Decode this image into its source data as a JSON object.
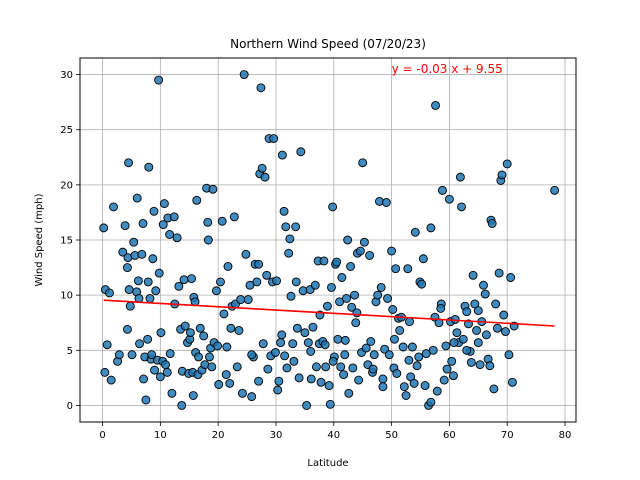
{
  "chart_data": {
    "type": "scatter",
    "title": "Northern Wind Speed (07/20/23)",
    "xlabel": "Latitude",
    "ylabel": "Wind Speed (mph)",
    "xlim": [
      -3.9,
      81.9
    ],
    "ylim": [
      -1.5,
      31.5
    ],
    "xticks": [
      0,
      10,
      20,
      30,
      40,
      50,
      60,
      70,
      80
    ],
    "yticks": [
      0,
      5,
      10,
      15,
      20,
      25,
      30
    ],
    "grid": true,
    "point_color": "#1f77b4",
    "point_edge_color": "#000000",
    "regression": {
      "equation": "y = -0.03 x + 9.55",
      "slope": -0.03,
      "intercept": 9.55,
      "x_range": [
        0.2,
        78.2
      ],
      "color": "#ff0000",
      "label_position": [
        50,
        30.5
      ]
    },
    "points": [
      [
        0.2,
        16.1
      ],
      [
        0.4,
        3.0
      ],
      [
        0.5,
        10.5
      ],
      [
        0.8,
        5.5
      ],
      [
        1.2,
        10.2
      ],
      [
        1.5,
        2.3
      ],
      [
        1.9,
        18.0
      ],
      [
        2.6,
        4.0
      ],
      [
        2.9,
        4.6
      ],
      [
        3.5,
        13.9
      ],
      [
        3.9,
        16.3
      ],
      [
        4.3,
        6.9
      ],
      [
        4.3,
        12.5
      ],
      [
        4.4,
        13.4
      ],
      [
        4.5,
        22.0
      ],
      [
        4.6,
        10.5
      ],
      [
        4.8,
        9.0
      ],
      [
        5.1,
        4.6
      ],
      [
        5.4,
        14.8
      ],
      [
        5.6,
        13.6
      ],
      [
        5.9,
        10.3
      ],
      [
        6.0,
        18.8
      ],
      [
        6.2,
        11.3
      ],
      [
        6.3,
        9.7
      ],
      [
        6.4,
        5.6
      ],
      [
        6.8,
        13.7
      ],
      [
        7.0,
        16.5
      ],
      [
        7.1,
        2.4
      ],
      [
        7.3,
        4.4
      ],
      [
        7.5,
        0.5
      ],
      [
        7.8,
        6.0
      ],
      [
        7.9,
        11.2
      ],
      [
        8.0,
        21.6
      ],
      [
        8.2,
        9.7
      ],
      [
        8.4,
        4.2
      ],
      [
        8.5,
        4.6
      ],
      [
        8.7,
        13.3
      ],
      [
        8.9,
        17.6
      ],
      [
        9.0,
        3.2
      ],
      [
        9.2,
        10.4
      ],
      [
        9.5,
        4.1
      ],
      [
        9.7,
        29.5
      ],
      [
        9.8,
        12.0
      ],
      [
        10.0,
        2.6
      ],
      [
        10.1,
        6.6
      ],
      [
        10.4,
        4.0
      ],
      [
        10.5,
        16.4
      ],
      [
        10.7,
        18.3
      ],
      [
        10.9,
        3.7
      ],
      [
        11.2,
        3.0
      ],
      [
        11.3,
        17.0
      ],
      [
        11.6,
        15.5
      ],
      [
        11.7,
        4.7
      ],
      [
        12.0,
        1.1
      ],
      [
        12.4,
        17.1
      ],
      [
        12.9,
        15.2
      ],
      [
        13.2,
        10.8
      ],
      [
        13.5,
        6.9
      ],
      [
        13.7,
        0.0
      ],
      [
        13.8,
        3.1
      ],
      [
        14.1,
        11.4
      ],
      [
        14.3,
        7.2
      ],
      [
        14.7,
        5.7
      ],
      [
        14.9,
        2.9
      ],
      [
        15.1,
        6.0
      ],
      [
        15.2,
        6.6
      ],
      [
        15.4,
        11.5
      ],
      [
        15.6,
        3.0
      ],
      [
        15.7,
        0.9
      ],
      [
        15.8,
        9.8
      ],
      [
        16.1,
        4.8
      ],
      [
        16.3,
        18.6
      ],
      [
        16.5,
        2.8
      ],
      [
        16.6,
        4.4
      ],
      [
        16.9,
        7.0
      ],
      [
        17.2,
        3.2
      ],
      [
        17.5,
        6.3
      ],
      [
        17.7,
        3.7
      ],
      [
        18.0,
        19.7
      ],
      [
        18.2,
        16.6
      ],
      [
        18.3,
        15.0
      ],
      [
        18.5,
        4.4
      ],
      [
        18.7,
        5.2
      ],
      [
        18.9,
        3.5
      ],
      [
        19.1,
        19.6
      ],
      [
        19.3,
        5.7
      ],
      [
        19.7,
        10.4
      ],
      [
        19.9,
        5.4
      ],
      [
        20.1,
        1.9
      ],
      [
        20.4,
        11.2
      ],
      [
        20.7,
        16.7
      ],
      [
        21.0,
        8.3
      ],
      [
        21.4,
        2.8
      ],
      [
        21.7,
        12.6
      ],
      [
        22.0,
        2.0
      ],
      [
        22.2,
        7.0
      ],
      [
        22.4,
        9.0
      ],
      [
        22.8,
        17.1
      ],
      [
        23.0,
        9.2
      ],
      [
        23.3,
        3.5
      ],
      [
        23.6,
        6.8
      ],
      [
        23.9,
        9.6
      ],
      [
        24.2,
        1.1
      ],
      [
        24.5,
        30.0
      ],
      [
        24.8,
        13.7
      ],
      [
        25.2,
        9.6
      ],
      [
        25.5,
        10.9
      ],
      [
        25.8,
        0.8
      ],
      [
        26.1,
        4.4
      ],
      [
        26.4,
        12.8
      ],
      [
        26.7,
        11.2
      ],
      [
        27.0,
        2.2
      ],
      [
        27.2,
        21.0
      ],
      [
        27.4,
        28.8
      ],
      [
        27.6,
        21.5
      ],
      [
        27.8,
        5.6
      ],
      [
        28.1,
        20.7
      ],
      [
        28.4,
        11.8
      ],
      [
        28.6,
        3.3
      ],
      [
        28.8,
        24.2
      ],
      [
        29.1,
        4.5
      ],
      [
        29.4,
        11.2
      ],
      [
        29.6,
        24.2
      ],
      [
        29.9,
        4.8
      ],
      [
        30.1,
        11.3
      ],
      [
        30.3,
        1.4
      ],
      [
        30.5,
        2.2
      ],
      [
        30.8,
        5.7
      ],
      [
        31.1,
        22.7
      ],
      [
        31.4,
        17.6
      ],
      [
        31.5,
        4.5
      ],
      [
        31.7,
        16.2
      ],
      [
        31.9,
        3.4
      ],
      [
        32.2,
        13.8
      ],
      [
        32.4,
        15.1
      ],
      [
        32.6,
        9.9
      ],
      [
        32.9,
        5.6
      ],
      [
        33.1,
        4.0
      ],
      [
        33.4,
        16.2
      ],
      [
        33.7,
        7.0
      ],
      [
        34.0,
        2.5
      ],
      [
        34.3,
        23.0
      ],
      [
        34.7,
        10.4
      ],
      [
        35.0,
        6.6
      ],
      [
        35.3,
        0.0
      ],
      [
        35.6,
        5.7
      ],
      [
        35.9,
        10.5
      ],
      [
        36.1,
        2.4
      ],
      [
        36.4,
        7.1
      ],
      [
        36.8,
        10.9
      ],
      [
        37.0,
        3.5
      ],
      [
        37.3,
        13.1
      ],
      [
        37.5,
        5.6
      ],
      [
        37.8,
        2.1
      ],
      [
        38.1,
        5.8
      ],
      [
        38.3,
        13.1
      ],
      [
        38.6,
        3.5
      ],
      [
        38.9,
        9.0
      ],
      [
        39.2,
        1.8
      ],
      [
        39.4,
        0.1
      ],
      [
        39.6,
        10.7
      ],
      [
        39.8,
        18.0
      ],
      [
        40.1,
        4.4
      ],
      [
        40.3,
        12.8
      ],
      [
        40.5,
        13.0
      ],
      [
        40.7,
        6.0
      ],
      [
        41.0,
        9.4
      ],
      [
        41.2,
        3.5
      ],
      [
        41.4,
        11.6
      ],
      [
        41.7,
        2.8
      ],
      [
        41.9,
        4.6
      ],
      [
        42.2,
        9.7
      ],
      [
        42.4,
        15.0
      ],
      [
        42.6,
        1.1
      ],
      [
        42.9,
        12.6
      ],
      [
        43.1,
        8.9
      ],
      [
        43.3,
        3.4
      ],
      [
        43.6,
        10.0
      ],
      [
        43.8,
        7.5
      ],
      [
        44.1,
        13.8
      ],
      [
        44.3,
        2.3
      ],
      [
        44.6,
        14.0
      ],
      [
        44.8,
        4.8
      ],
      [
        45.0,
        22.0
      ],
      [
        45.3,
        14.8
      ],
      [
        45.6,
        5.2
      ],
      [
        45.9,
        3.7
      ],
      [
        46.2,
        13.6
      ],
      [
        46.4,
        5.8
      ],
      [
        46.7,
        3.0
      ],
      [
        47.0,
        4.6
      ],
      [
        47.3,
        9.4
      ],
      [
        47.6,
        10.0
      ],
      [
        47.9,
        18.5
      ],
      [
        48.2,
        10.7
      ],
      [
        48.5,
        2.4
      ],
      [
        48.8,
        5.1
      ],
      [
        49.1,
        18.4
      ],
      [
        49.3,
        9.7
      ],
      [
        49.6,
        4.6
      ],
      [
        50.0,
        14.0
      ],
      [
        50.2,
        8.7
      ],
      [
        50.4,
        3.4
      ],
      [
        50.7,
        12.4
      ],
      [
        50.9,
        2.9
      ],
      [
        51.2,
        7.9
      ],
      [
        51.4,
        6.8
      ],
      [
        51.7,
        8.0
      ],
      [
        52.0,
        5.3
      ],
      [
        52.2,
        1.7
      ],
      [
        52.5,
        0.9
      ],
      [
        52.8,
        12.4
      ],
      [
        53.1,
        7.6
      ],
      [
        53.3,
        2.6
      ],
      [
        53.6,
        5.3
      ],
      [
        53.9,
        2.0
      ],
      [
        54.1,
        15.7
      ],
      [
        54.4,
        3.6
      ],
      [
        54.7,
        4.4
      ],
      [
        54.9,
        11.2
      ],
      [
        55.2,
        11.0
      ],
      [
        55.5,
        13.3
      ],
      [
        55.8,
        1.8
      ],
      [
        56.0,
        4.7
      ],
      [
        56.4,
        0.0
      ],
      [
        56.8,
        16.1
      ],
      [
        57.2,
        5.0
      ],
      [
        57.5,
        8.0
      ],
      [
        57.9,
        1.3
      ],
      [
        58.2,
        7.5
      ],
      [
        58.6,
        9.2
      ],
      [
        58.8,
        19.5
      ],
      [
        59.1,
        2.3
      ],
      [
        59.4,
        5.4
      ],
      [
        59.6,
        3.3
      ],
      [
        60.0,
        18.7
      ],
      [
        60.2,
        7.6
      ],
      [
        60.4,
        4.0
      ],
      [
        60.7,
        2.7
      ],
      [
        61.0,
        7.8
      ],
      [
        61.3,
        6.6
      ],
      [
        61.6,
        5.7
      ],
      [
        61.9,
        20.7
      ],
      [
        62.1,
        18.0
      ],
      [
        62.4,
        6.0
      ],
      [
        62.7,
        9.0
      ],
      [
        63.0,
        8.5
      ],
      [
        63.3,
        7.4
      ],
      [
        63.6,
        4.9
      ],
      [
        63.8,
        3.9
      ],
      [
        64.1,
        11.8
      ],
      [
        64.4,
        9.2
      ],
      [
        64.7,
        6.8
      ],
      [
        65.0,
        5.7
      ],
      [
        65.3,
        3.7
      ],
      [
        65.6,
        7.6
      ],
      [
        65.9,
        10.9
      ],
      [
        66.2,
        10.1
      ],
      [
        66.4,
        6.4
      ],
      [
        66.7,
        4.2
      ],
      [
        67.0,
        3.6
      ],
      [
        67.2,
        16.8
      ],
      [
        67.4,
        16.5
      ],
      [
        67.7,
        1.5
      ],
      [
        68.0,
        9.2
      ],
      [
        68.3,
        7.0
      ],
      [
        68.6,
        12.0
      ],
      [
        68.9,
        20.4
      ],
      [
        69.1,
        20.9
      ],
      [
        69.4,
        8.2
      ],
      [
        69.7,
        6.7
      ],
      [
        70.0,
        21.9
      ],
      [
        70.3,
        4.6
      ],
      [
        70.6,
        11.6
      ],
      [
        70.9,
        2.1
      ],
      [
        71.2,
        7.2
      ],
      [
        56.8,
        0.3
      ],
      [
        57.6,
        27.2
      ],
      [
        50.5,
        6.0
      ],
      [
        44.0,
        8.4
      ],
      [
        37.6,
        8.2
      ],
      [
        39.9,
        4.0
      ],
      [
        36.0,
        4.9
      ],
      [
        31.0,
        6.4
      ],
      [
        25.8,
        4.6
      ],
      [
        21.5,
        5.3
      ],
      [
        12.5,
        9.2
      ],
      [
        16.0,
        9.4
      ],
      [
        46.8,
        3.3
      ],
      [
        53.0,
        4.1
      ],
      [
        60.8,
        5.7
      ],
      [
        63.0,
        5.0
      ],
      [
        48.5,
        1.7
      ],
      [
        78.2,
        19.5
      ],
      [
        58.5,
        8.8
      ],
      [
        65.0,
        8.6
      ],
      [
        33.5,
        11.2
      ],
      [
        27.0,
        12.8
      ],
      [
        42.0,
        5.9
      ],
      [
        38.5,
        5.5
      ]
    ]
  }
}
